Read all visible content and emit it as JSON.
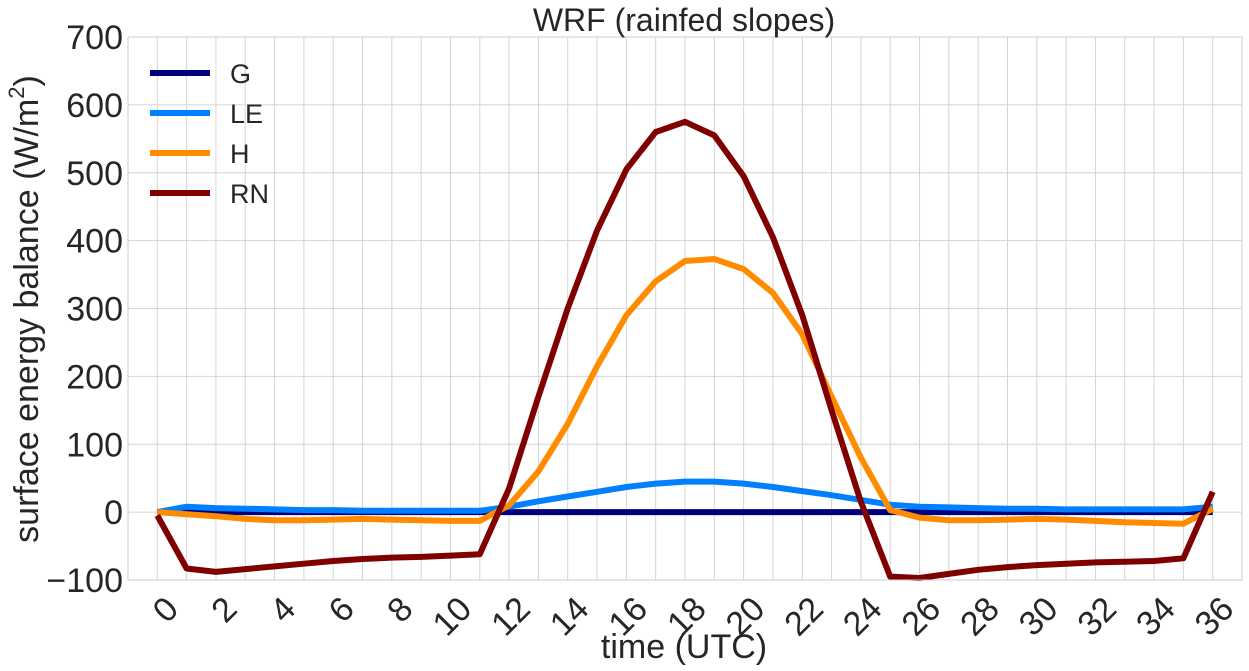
{
  "chart_data": {
    "type": "line",
    "title": "WRF (rainfed slopes)",
    "xlabel": "time (UTC)",
    "ylabel": "surface energy balance (W/m",
    "ylabel_superscript": "2",
    "ylabel_close": ")",
    "xlim": [
      -1,
      37
    ],
    "ylim": [
      -100,
      700
    ],
    "xticks": [
      0,
      2,
      4,
      6,
      8,
      10,
      12,
      14,
      16,
      18,
      20,
      22,
      24,
      26,
      28,
      30,
      32,
      34,
      36
    ],
    "yticks": [
      -100,
      0,
      100,
      200,
      300,
      400,
      500,
      600,
      700
    ],
    "ytick_labels": [
      "−100",
      "0",
      "100",
      "200",
      "300",
      "400",
      "500",
      "600",
      "700"
    ],
    "grid": true,
    "legend_position": "top-left",
    "x": [
      0,
      1,
      2,
      3,
      4,
      5,
      6,
      7,
      8,
      9,
      10,
      11,
      12,
      13,
      14,
      15,
      16,
      17,
      18,
      19,
      20,
      21,
      22,
      23,
      24,
      25,
      26,
      27,
      28,
      29,
      30,
      31,
      32,
      33,
      34,
      35,
      36
    ],
    "series": [
      {
        "name": "G",
        "color": "#00007f",
        "values": [
          0,
          0,
          0,
          0,
          0,
          0,
          0,
          0,
          0,
          0,
          0,
          0,
          0,
          0,
          0,
          0,
          0,
          0,
          0,
          0,
          0,
          0,
          0,
          0,
          0,
          0,
          0,
          0,
          0,
          0,
          0,
          0,
          0,
          0,
          0,
          0,
          0
        ]
      },
      {
        "name": "LE",
        "color": "#0080ff",
        "values": [
          0,
          8,
          6,
          5,
          4,
          3,
          3,
          2,
          2,
          2,
          2,
          2,
          8,
          16,
          23,
          30,
          37,
          42,
          45,
          45,
          42,
          37,
          31,
          25,
          18,
          11,
          8,
          7,
          6,
          5,
          5,
          4,
          4,
          4,
          4,
          4,
          8
        ]
      },
      {
        "name": "H",
        "color": "#ff8c00",
        "values": [
          0,
          -3,
          -6,
          -10,
          -12,
          -12,
          -11,
          -10,
          -11,
          -12,
          -13,
          -13,
          10,
          60,
          130,
          215,
          290,
          340,
          370,
          373,
          358,
          323,
          262,
          170,
          80,
          3,
          -8,
          -12,
          -12,
          -11,
          -10,
          -11,
          -13,
          -15,
          -16,
          -17,
          5
        ]
      },
      {
        "name": "RN",
        "color": "#800000",
        "values": [
          -5,
          -83,
          -88,
          -84,
          -80,
          -76,
          -72,
          -69,
          -67,
          -66,
          -64,
          -62,
          35,
          170,
          300,
          415,
          505,
          560,
          575,
          555,
          495,
          405,
          290,
          150,
          15,
          -95,
          -97,
          -91,
          -85,
          -81,
          -78,
          -76,
          -74,
          -73,
          -72,
          -68,
          30
        ]
      }
    ]
  }
}
